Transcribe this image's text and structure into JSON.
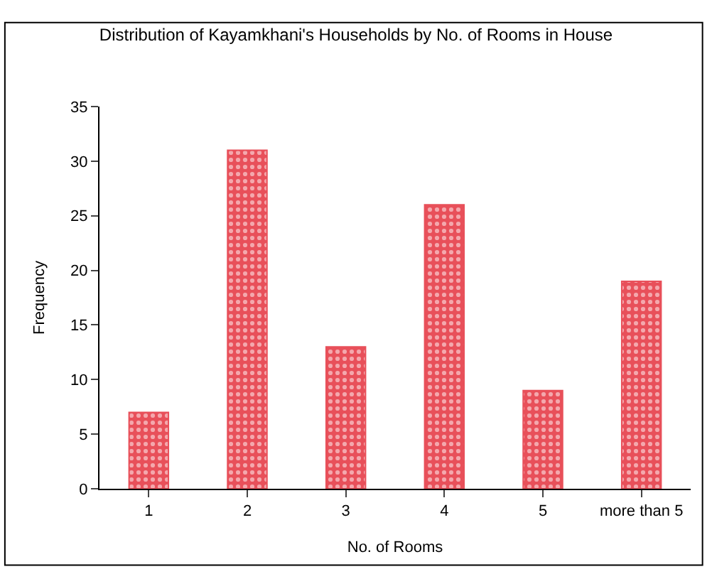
{
  "chart_data": {
    "type": "bar",
    "title": "Distribution of Kayamkhani's Households by No. of Rooms in House",
    "xlabel": "No. of Rooms",
    "ylabel": "Frequency",
    "categories": [
      "1",
      "2",
      "3",
      "4",
      "5",
      "more than 5"
    ],
    "values": [
      7,
      31,
      13,
      26,
      9,
      19
    ],
    "color": "#e8505a",
    "ylim": [
      0,
      35
    ],
    "yticks": [
      0,
      5,
      10,
      15,
      20,
      25,
      30,
      35
    ],
    "grid": false
  }
}
